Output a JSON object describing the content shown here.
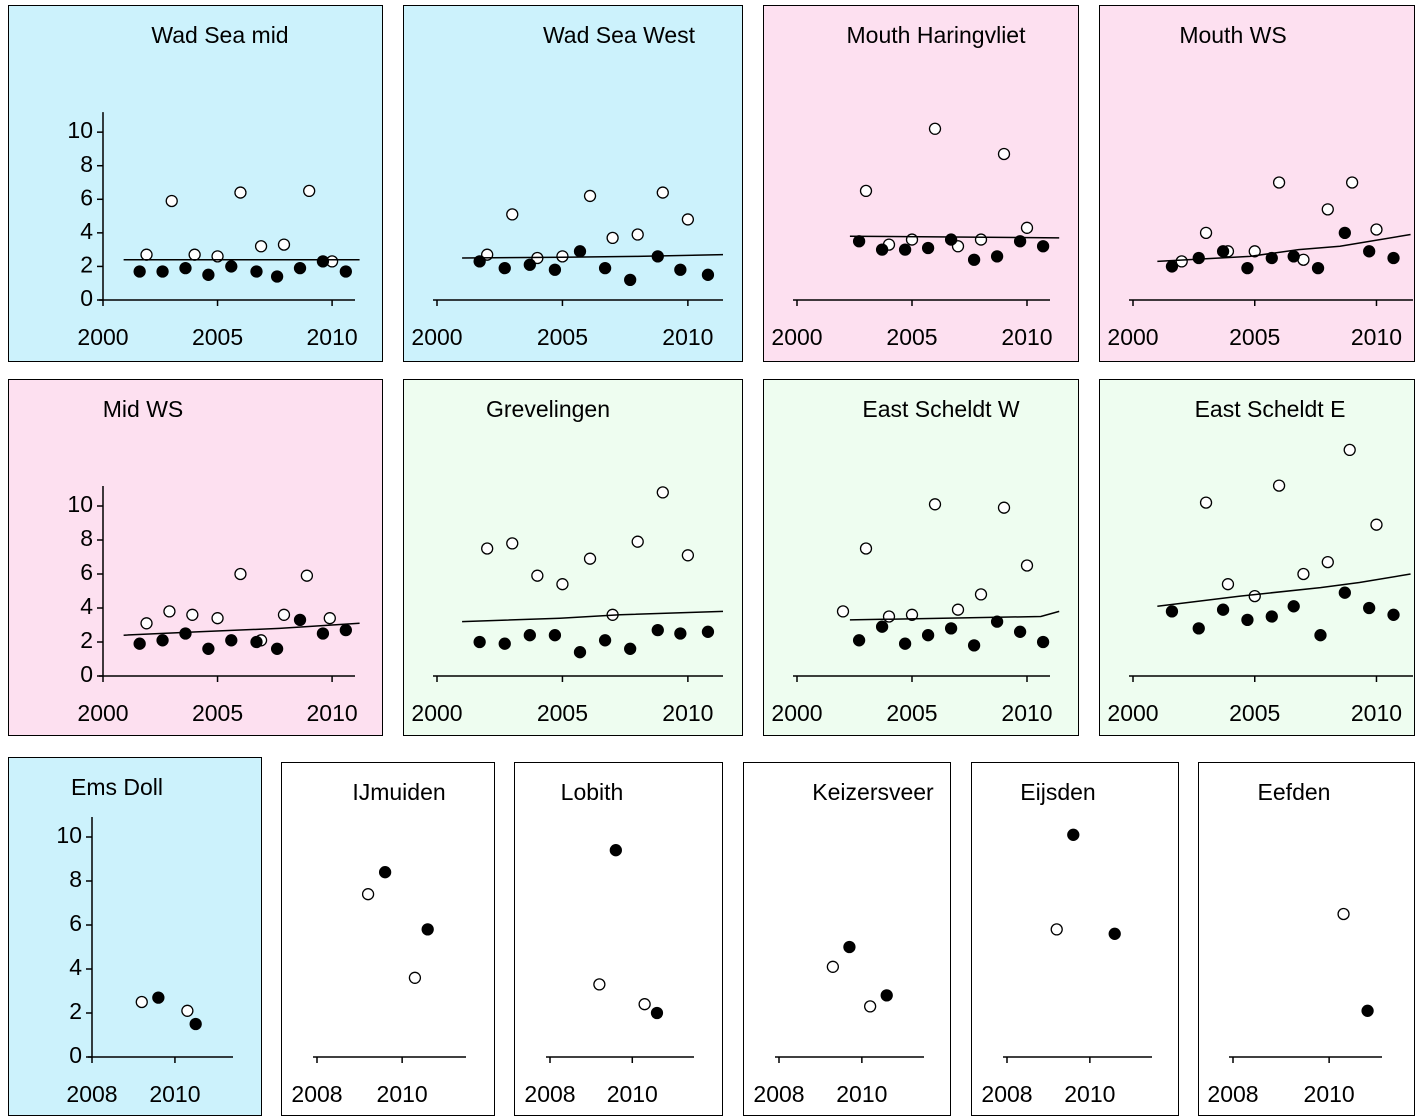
{
  "chart_data": [
    {
      "type": "scatter",
      "title": "Wad Sea mid",
      "background": "#ccf2fc",
      "xlim": [
        2000,
        2011
      ],
      "xticks": [
        2000,
        2005,
        2010
      ],
      "ylim": [
        0,
        14
      ],
      "yticks": [
        0,
        2,
        4,
        6,
        8,
        10
      ],
      "series": [
        {
          "marker": "open",
          "color": "#000000",
          "x": [
            2001.9,
            2003.0,
            2004.0,
            2005.0,
            2006.0,
            2006.9,
            2007.9,
            2009.0,
            2010.0
          ],
          "values": [
            2.7,
            5.9,
            2.7,
            2.6,
            6.4,
            3.2,
            3.3,
            6.5,
            2.3
          ]
        },
        {
          "marker": "filled",
          "color": "#000000",
          "x": [
            2001.6,
            2002.6,
            2003.6,
            2004.6,
            2005.6,
            2006.7,
            2007.6,
            2008.6,
            2009.6,
            2010.6
          ],
          "values": [
            1.7,
            1.7,
            1.9,
            1.5,
            2.0,
            1.7,
            1.4,
            1.9,
            2.3,
            1.7
          ]
        },
        {
          "marker": "line",
          "color": "#000000",
          "x": [
            2000.9,
            2011.2
          ],
          "values": [
            2.4,
            2.4
          ]
        }
      ]
    },
    {
      "type": "scatter",
      "title": "Wad Sea West",
      "background": "#ccf2fc",
      "xlim": [
        2000,
        2011.4
      ],
      "xticks": [
        2000,
        2005,
        2010
      ],
      "ylim": [
        0,
        14
      ],
      "series": [
        {
          "marker": "open",
          "color": "#000000",
          "x": [
            2002.0,
            2003.0,
            2004.0,
            2005.0,
            2006.1,
            2007.0,
            2008.0,
            2009.0,
            2010.0
          ],
          "values": [
            2.7,
            5.1,
            2.5,
            2.6,
            6.2,
            3.7,
            3.9,
            6.4,
            4.8
          ]
        },
        {
          "marker": "filled",
          "color": "#000000",
          "x": [
            2001.7,
            2002.7,
            2003.7,
            2004.7,
            2005.7,
            2006.7,
            2007.7,
            2008.8,
            2009.7,
            2010.8
          ],
          "values": [
            2.3,
            1.9,
            2.1,
            1.8,
            2.9,
            1.9,
            1.2,
            2.6,
            1.8,
            1.5
          ]
        },
        {
          "marker": "line",
          "color": "#000000",
          "x": [
            2001.0,
            2005.0,
            2008.0,
            2011.4
          ],
          "values": [
            2.5,
            2.55,
            2.6,
            2.7
          ]
        }
      ]
    },
    {
      "type": "scatter",
      "title": "Mouth Haringvliet",
      "background": "#fde0f0",
      "xlim": [
        2000,
        2011
      ],
      "xticks": [
        2000,
        2005,
        2010
      ],
      "ylim": [
        0,
        14
      ],
      "series": [
        {
          "marker": "open",
          "color": "#000000",
          "x": [
            2003.0,
            2004.0,
            2005.0,
            2006.0,
            2007.0,
            2008.0,
            2009.0,
            2010.0
          ],
          "values": [
            6.5,
            3.3,
            3.6,
            10.2,
            3.2,
            3.6,
            8.7,
            4.3
          ]
        },
        {
          "marker": "filled",
          "color": "#000000",
          "x": [
            2002.7,
            2003.7,
            2004.7,
            2005.7,
            2006.7,
            2007.7,
            2008.7,
            2009.7,
            2010.7
          ],
          "values": [
            3.5,
            3.0,
            3.0,
            3.1,
            3.6,
            2.4,
            2.6,
            3.5,
            3.2
          ]
        },
        {
          "marker": "line",
          "color": "#000000",
          "x": [
            2002.3,
            2011.4
          ],
          "values": [
            3.8,
            3.7
          ]
        }
      ]
    },
    {
      "type": "scatter",
      "title": "Mouth WS",
      "background": "#fde0f0",
      "xlim": [
        2000,
        2011.5
      ],
      "xticks": [
        2000,
        2005,
        2010
      ],
      "ylim": [
        0,
        14
      ],
      "series": [
        {
          "marker": "open",
          "color": "#000000",
          "x": [
            2002.0,
            2003.0,
            2003.9,
            2005.0,
            2006.0,
            2007.0,
            2008.0,
            2009.0,
            2010.0
          ],
          "values": [
            2.3,
            4.0,
            2.9,
            2.9,
            7.0,
            2.4,
            5.4,
            7.0,
            4.2
          ]
        },
        {
          "marker": "filled",
          "color": "#000000",
          "x": [
            2001.6,
            2002.7,
            2003.7,
            2004.7,
            2005.7,
            2006.6,
            2007.6,
            2008.7,
            2009.7,
            2010.7
          ],
          "values": [
            2.0,
            2.5,
            2.9,
            1.9,
            2.5,
            2.6,
            1.9,
            4.0,
            2.9,
            2.5
          ]
        },
        {
          "marker": "line",
          "color": "#000000",
          "x": [
            2001.0,
            2004.8,
            2006.8,
            2008.5,
            2011.4
          ],
          "values": [
            2.3,
            2.6,
            3.0,
            3.2,
            3.9
          ]
        }
      ]
    },
    {
      "type": "scatter",
      "title": "Mid WS",
      "background": "#fde0f0",
      "xlim": [
        2000,
        2011
      ],
      "xticks": [
        2000,
        2005,
        2010
      ],
      "ylim": [
        0,
        14
      ],
      "yticks": [
        0,
        2,
        4,
        6,
        8,
        10
      ],
      "series": [
        {
          "marker": "open",
          "color": "#000000",
          "x": [
            2001.9,
            2002.9,
            2003.9,
            2005.0,
            2006.0,
            2006.9,
            2007.9,
            2008.9,
            2009.9
          ],
          "values": [
            3.1,
            3.8,
            3.6,
            3.4,
            6.0,
            2.1,
            3.6,
            5.9,
            3.4
          ]
        },
        {
          "marker": "filled",
          "color": "#000000",
          "x": [
            2001.6,
            2002.6,
            2003.6,
            2004.6,
            2005.6,
            2006.7,
            2007.6,
            2008.6,
            2009.6,
            2010.6
          ],
          "values": [
            1.9,
            2.1,
            2.5,
            1.6,
            2.1,
            2.0,
            1.6,
            3.3,
            2.5,
            2.7
          ]
        },
        {
          "marker": "line",
          "color": "#000000",
          "x": [
            2000.9,
            2004.2,
            2007.7,
            2011.2
          ],
          "values": [
            2.4,
            2.6,
            2.8,
            3.1
          ]
        }
      ]
    },
    {
      "type": "scatter",
      "title": "Grevelingen",
      "background": "#eefdf0",
      "xlim": [
        2000,
        2011.4
      ],
      "xticks": [
        2000,
        2005,
        2010
      ],
      "ylim": [
        0,
        14
      ],
      "series": [
        {
          "marker": "open",
          "color": "#000000",
          "x": [
            2002.0,
            2003.0,
            2004.0,
            2005.0,
            2006.1,
            2007.0,
            2008.0,
            2009.0,
            2010.0
          ],
          "values": [
            7.5,
            7.8,
            5.9,
            5.4,
            6.9,
            3.6,
            7.9,
            10.8,
            7.1
          ]
        },
        {
          "marker": "filled",
          "color": "#000000",
          "x": [
            2001.7,
            2002.7,
            2003.7,
            2004.7,
            2005.7,
            2006.7,
            2007.7,
            2008.8,
            2009.7,
            2010.8
          ],
          "values": [
            2.0,
            1.9,
            2.4,
            2.4,
            1.4,
            2.1,
            1.6,
            2.7,
            2.5,
            2.6
          ]
        },
        {
          "marker": "line",
          "color": "#000000",
          "x": [
            2001.0,
            2004.9,
            2007.3,
            2011.4
          ],
          "values": [
            3.2,
            3.4,
            3.6,
            3.8
          ]
        }
      ]
    },
    {
      "type": "scatter",
      "title": "East Scheldt W",
      "background": "#eefdf0",
      "xlim": [
        2000,
        2011
      ],
      "xticks": [
        2000,
        2005,
        2010
      ],
      "ylim": [
        0,
        14
      ],
      "series": [
        {
          "marker": "open",
          "color": "#000000",
          "x": [
            2002.0,
            2003.0,
            2004.0,
            2005.0,
            2006.0,
            2007.0,
            2008.0,
            2009.0,
            2010.0
          ],
          "values": [
            3.8,
            7.5,
            3.5,
            3.6,
            10.1,
            3.9,
            4.8,
            9.9,
            6.5
          ]
        },
        {
          "marker": "filled",
          "color": "#000000",
          "x": [
            2002.7,
            2003.7,
            2004.7,
            2005.7,
            2006.7,
            2007.7,
            2008.7,
            2009.7,
            2010.7
          ],
          "values": [
            2.1,
            2.9,
            1.9,
            2.4,
            2.8,
            1.8,
            3.2,
            2.6,
            2.0
          ]
        },
        {
          "marker": "line",
          "color": "#000000",
          "x": [
            2002.3,
            2010.6,
            2011.4
          ],
          "values": [
            3.3,
            3.5,
            3.8
          ]
        }
      ]
    },
    {
      "type": "scatter",
      "title": "East Scheldt E",
      "background": "#eefdf0",
      "xlim": [
        2000,
        2011.5
      ],
      "xticks": [
        2000,
        2005,
        2010
      ],
      "ylim": [
        0,
        14
      ],
      "series": [
        {
          "marker": "open",
          "color": "#000000",
          "x": [
            2003.0,
            2003.9,
            2005.0,
            2006.0,
            2007.0,
            2008.0,
            2008.9,
            2010.0
          ],
          "values": [
            10.2,
            5.4,
            4.7,
            11.2,
            6.0,
            6.7,
            13.3,
            8.9
          ]
        },
        {
          "marker": "filled",
          "color": "#000000",
          "x": [
            2001.6,
            2002.7,
            2003.7,
            2004.7,
            2005.7,
            2006.6,
            2007.7,
            2008.7,
            2009.7,
            2010.7
          ],
          "values": [
            3.8,
            2.8,
            3.9,
            3.3,
            3.5,
            4.1,
            2.4,
            4.9,
            4.0,
            3.6
          ]
        },
        {
          "marker": "line",
          "color": "#000000",
          "x": [
            2001.0,
            2004.4,
            2007.7,
            2009.3,
            2011.4
          ],
          "values": [
            4.1,
            4.7,
            5.2,
            5.5,
            6.0
          ]
        }
      ]
    },
    {
      "type": "scatter",
      "title": "Ems Doll",
      "background": "#ccf2fc",
      "xlim": [
        2008,
        2011.4
      ],
      "xticks": [
        2008,
        2010
      ],
      "ylim": [
        0,
        11
      ],
      "yticks": [
        0,
        2,
        4,
        6,
        8,
        10
      ],
      "series": [
        {
          "marker": "open",
          "color": "#000000",
          "x": [
            2009.2,
            2010.3
          ],
          "values": [
            2.5,
            2.1
          ]
        },
        {
          "marker": "filled",
          "color": "#000000",
          "x": [
            2009.6,
            2010.5
          ],
          "values": [
            2.7,
            1.5
          ]
        }
      ]
    },
    {
      "type": "scatter",
      "title": "IJmuiden",
      "background": "#ffffff",
      "xlim": [
        2008,
        2011.5
      ],
      "xticks": [
        2008,
        2010
      ],
      "ylim": [
        0,
        11
      ],
      "series": [
        {
          "marker": "open",
          "color": "#000000",
          "x": [
            2009.2,
            2010.3
          ],
          "values": [
            7.4,
            3.6
          ]
        },
        {
          "marker": "filled",
          "color": "#000000",
          "x": [
            2009.6,
            2010.6
          ],
          "values": [
            8.4,
            5.8
          ]
        }
      ]
    },
    {
      "type": "scatter",
      "title": "Lobith",
      "background": "#ffffff",
      "xlim": [
        2008,
        2011.5
      ],
      "xticks": [
        2008,
        2010
      ],
      "ylim": [
        0,
        11
      ],
      "series": [
        {
          "marker": "open",
          "color": "#000000",
          "x": [
            2009.2,
            2010.3
          ],
          "values": [
            3.3,
            2.4
          ]
        },
        {
          "marker": "filled",
          "color": "#000000",
          "x": [
            2009.6,
            2010.6
          ],
          "values": [
            9.4,
            2.0
          ]
        }
      ]
    },
    {
      "type": "scatter",
      "title": "Keizersveer",
      "background": "#ffffff",
      "xlim": [
        2008,
        2011.5
      ],
      "xticks": [
        2008,
        2010
      ],
      "ylim": [
        0,
        11
      ],
      "series": [
        {
          "marker": "open",
          "color": "#000000",
          "x": [
            2009.3,
            2010.2
          ],
          "values": [
            4.1,
            2.3
          ]
        },
        {
          "marker": "filled",
          "color": "#000000",
          "x": [
            2009.7,
            2010.6
          ],
          "values": [
            5.0,
            2.8
          ]
        }
      ]
    },
    {
      "type": "scatter",
      "title": "Eijsden",
      "background": "#ffffff",
      "xlim": [
        2008,
        2011.5
      ],
      "xticks": [
        2008,
        2010
      ],
      "ylim": [
        0,
        11
      ],
      "series": [
        {
          "marker": "open",
          "color": "#000000",
          "x": [
            2009.2
          ],
          "values": [
            5.8
          ]
        },
        {
          "marker": "filled",
          "color": "#000000",
          "x": [
            2009.6,
            2010.6
          ],
          "values": [
            10.1,
            5.6
          ]
        }
      ]
    },
    {
      "type": "scatter",
      "title": "Eefden",
      "background": "#ffffff",
      "xlim": [
        2008,
        2011.1
      ],
      "xticks": [
        2008,
        2010
      ],
      "ylim": [
        0,
        11
      ],
      "series": [
        {
          "marker": "open",
          "color": "#000000",
          "x": [
            2010.3
          ],
          "values": [
            6.5
          ]
        },
        {
          "marker": "filled",
          "color": "#000000",
          "x": [
            2010.8
          ],
          "values": [
            2.1
          ]
        }
      ]
    }
  ]
}
